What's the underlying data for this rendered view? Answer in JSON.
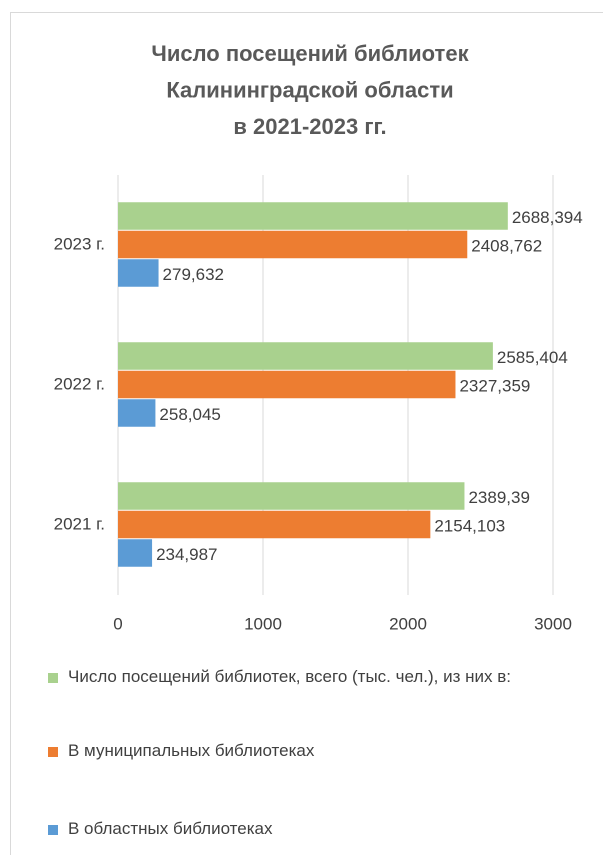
{
  "chart_data": {
    "type": "hbar",
    "title": [
      "Число посещений библиотек",
      "Калининградской области",
      "в 2021-2023 гг."
    ],
    "categories": [
      "2023 г.",
      "2022 г.",
      "2021 г."
    ],
    "series": [
      {
        "name": "Число посещений библиотек, всего (тыс. чел.), из них в:",
        "color": "#a9d18e",
        "values": [
          2688.394,
          2585.404,
          2389.39
        ],
        "value_labels": [
          "2688,394",
          "2585,404",
          "2389,39"
        ]
      },
      {
        "name": "В муниципальных библиотеках",
        "color": "#ed7d31",
        "values": [
          2408.762,
          2327.359,
          2154.103
        ],
        "value_labels": [
          "2408,762",
          "2327,359",
          "2154,103"
        ]
      },
      {
        "name": "В областных библиотеках",
        "color": "#5b9bd5",
        "values": [
          279.632,
          258.045,
          234.987
        ],
        "value_labels": [
          "279,632",
          "258,045",
          "234,987"
        ]
      }
    ],
    "xlim": [
      0,
      3000
    ],
    "xticks": [
      0,
      1000,
      2000,
      3000
    ],
    "grid": true,
    "legend": "bottom"
  }
}
